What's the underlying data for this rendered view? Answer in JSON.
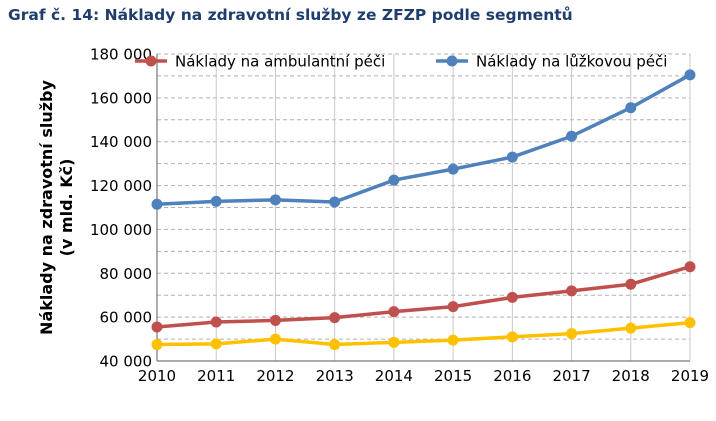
{
  "title": "Graf č. 14: Náklady na zdravotní služby ze ZFZP podle segmentů",
  "chart_data": {
    "type": "line",
    "title": "Graf č. 14: Náklady na zdravotní služby ze ZFZP podle segmentů",
    "ylabel_lines": [
      "Náklady na zdravotní služby",
      "(v mld. Kč)"
    ],
    "xlabel": "",
    "x": [
      "2010",
      "2011",
      "2012",
      "2013",
      "2014",
      "2015",
      "2016",
      "2017",
      "2018",
      "2019"
    ],
    "ylim": [
      40000,
      180000
    ],
    "yticks": [
      40000,
      60000,
      80000,
      100000,
      120000,
      140000,
      160000,
      180000
    ],
    "ytick_labels": [
      "40 000",
      "60 000",
      "80 000",
      "100 000",
      "120 000",
      "140 000",
      "160 000",
      "180 000"
    ],
    "grid": "horizontal dashed",
    "legend_position": "top",
    "series": [
      {
        "name": "Náklady na ambulantní péči",
        "color": "#c0504d",
        "values": [
          55500,
          57800,
          58500,
          59800,
          62500,
          64800,
          69000,
          72000,
          75000,
          83000
        ]
      },
      {
        "name": "Náklady na lůžkovou péči",
        "color": "#4f81bd",
        "values": [
          111500,
          112800,
          113500,
          112500,
          122500,
          127500,
          133000,
          142500,
          155500,
          170500
        ]
      },
      {
        "name": "",
        "color": "#ffc000",
        "values": [
          47500,
          47800,
          50000,
          47500,
          48500,
          49500,
          51000,
          52500,
          55000,
          57500
        ]
      }
    ]
  }
}
